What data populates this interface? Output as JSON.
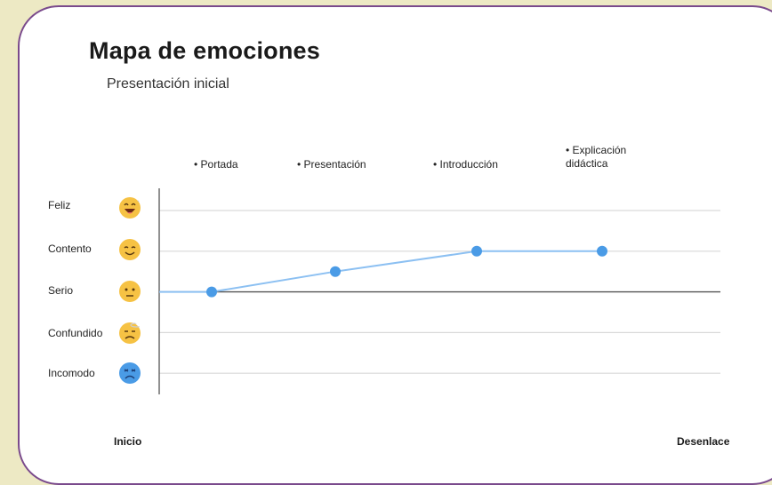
{
  "header": {
    "title": "Mapa de emociones",
    "subtitle": "Presentación inicial"
  },
  "chart_data": {
    "type": "line",
    "categories": [
      "Portada",
      "Presentación",
      "Introducción",
      "Explicación didáctica"
    ],
    "stage_labels": [
      "• Portada",
      "• Presentación",
      "• Introducción",
      "• Explicación\ndidáctica"
    ],
    "y_levels": [
      "Incomodo",
      "Confundido",
      "Serio",
      "Contento",
      "Feliz"
    ],
    "series": [
      {
        "values": [
          3,
          3.5,
          4,
          4
        ]
      }
    ],
    "line_start_value": 3,
    "ylim": [
      1,
      5
    ],
    "x_start_label": "Inicio",
    "x_end_label": "Desenlace",
    "grid": true,
    "colors": {
      "line": "#8cc0f2",
      "marker": "#4a9be6",
      "grid": "#d9d9d9",
      "baseline": "#555555"
    }
  },
  "emojis": [
    {
      "level": "Feliz",
      "icon": "laughing-face-icon",
      "color": "#f6c244"
    },
    {
      "level": "Contento",
      "icon": "smiling-face-icon",
      "color": "#f6c244"
    },
    {
      "level": "Serio",
      "icon": "neutral-face-icon",
      "color": "#f6c244"
    },
    {
      "level": "Confundido",
      "icon": "dizzy-face-icon",
      "color": "#f6c244"
    },
    {
      "level": "Incomodo",
      "icon": "sad-face-icon",
      "color": "#4a9be6"
    }
  ]
}
